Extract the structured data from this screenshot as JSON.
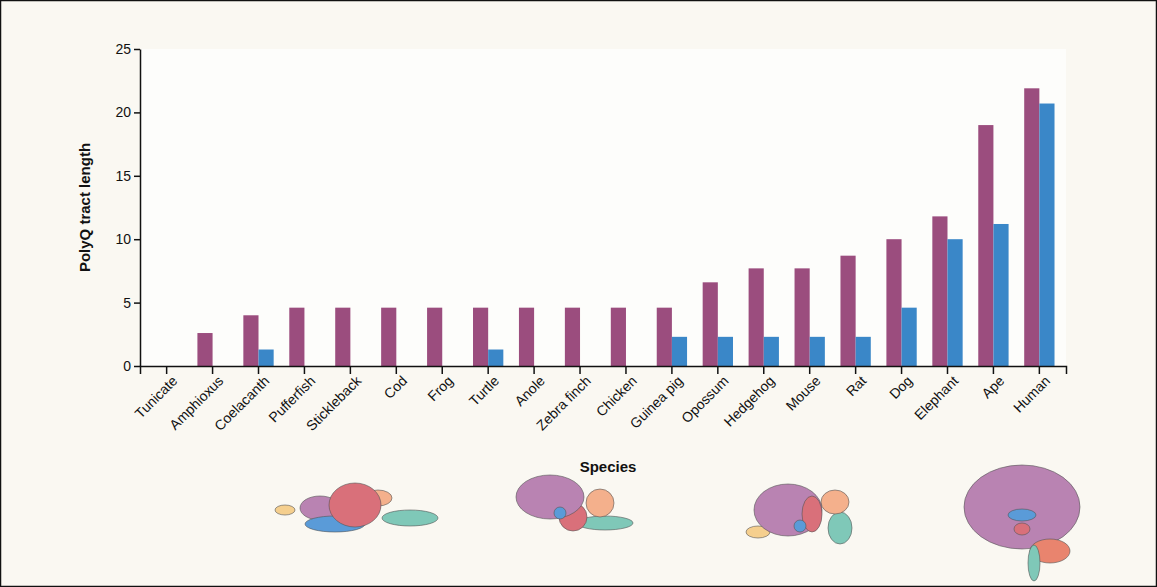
{
  "chart_data": {
    "type": "bar",
    "x_label": "Species",
    "y_label": "PolyQ tract length",
    "categories": [
      "Tunicate",
      "Amphioxus",
      "Coelacanth",
      "Pufferfish",
      "Stickleback",
      "Cod",
      "Frog",
      "Turtle",
      "Anole",
      "Zebra finch",
      "Chicken",
      "Guinea pig",
      "Opossum",
      "Hedgehog",
      "Mouse",
      "Rat",
      "Dog",
      "Elephant",
      "Ape",
      "Human"
    ],
    "series": [
      {
        "color": "#9b4d7e",
        "values": [
          0,
          2.6,
          4.0,
          4.6,
          4.6,
          4.6,
          4.6,
          4.6,
          4.6,
          4.6,
          4.6,
          4.6,
          6.6,
          7.7,
          7.7,
          8.7,
          10.0,
          11.8,
          19.0,
          21.9
        ]
      },
      {
        "color": "#3a87c8",
        "values": [
          0,
          0,
          1.3,
          0,
          0,
          0,
          0,
          1.3,
          0,
          0,
          0,
          2.3,
          2.3,
          2.3,
          2.3,
          2.3,
          4.6,
          10.0,
          11.2,
          20.7
        ]
      }
    ],
    "ylim": [
      0,
      25
    ],
    "yticks": [
      0,
      5,
      10,
      15,
      20,
      25
    ],
    "grid": false
  }
}
